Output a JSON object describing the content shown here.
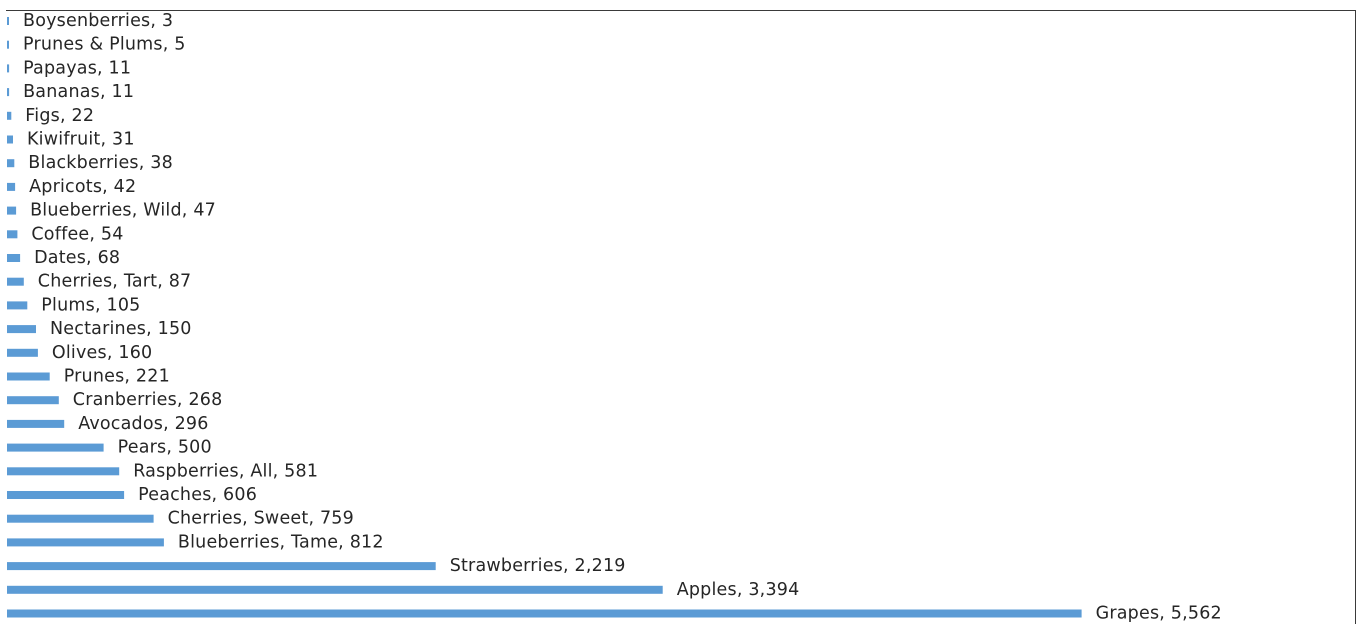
{
  "chart_data": {
    "type": "bar",
    "orientation": "horizontal",
    "categories": [
      "Boysenberries",
      "Prunes & Plums",
      "Papayas",
      "Bananas",
      "Figs",
      "Kiwifruit",
      "Blackberries",
      "Apricots",
      "Blueberries, Wild",
      "Coffee",
      "Dates",
      "Cherries, Tart",
      "Plums",
      "Nectarines",
      "Olives",
      "Prunes",
      "Cranberries",
      "Avocados",
      "Pears",
      "Raspberries, All",
      "Peaches",
      "Cherries, Sweet",
      "Blueberries, Tame",
      "Strawberries",
      "Apples",
      "Grapes"
    ],
    "values": [
      3,
      5,
      11,
      11,
      22,
      31,
      38,
      42,
      47,
      54,
      68,
      87,
      105,
      150,
      160,
      221,
      268,
      296,
      500,
      581,
      606,
      759,
      812,
      2219,
      3394,
      5562
    ],
    "data_labels": [
      "Boysenberries, 3",
      "Prunes & Plums, 5",
      "Papayas, 11",
      "Bananas, 11",
      "Figs, 22",
      "Kiwifruit, 31",
      "Blackberries, 38",
      "Apricots, 42",
      "Blueberries, Wild, 47",
      "Coffee, 54",
      "Dates, 68",
      "Cherries, Tart, 87",
      "Plums, 105",
      "Nectarines, 150",
      "Olives, 160",
      "Prunes, 221",
      "Cranberries, 268",
      "Avocados, 296",
      "Pears, 500",
      "Raspberries, All, 581",
      "Peaches, 606",
      "Cherries, Sweet, 759",
      "Blueberries, Tame, 812",
      "Strawberries, 2,219",
      "Apples, 3,394",
      "Grapes, 5,562"
    ],
    "bar_color": "#5b9bd5",
    "xlim": [
      0,
      6600
    ],
    "grid": false,
    "legend": "none"
  }
}
